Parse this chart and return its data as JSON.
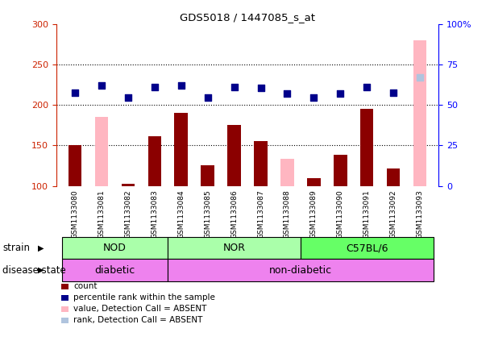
{
  "title": "GDS5018 / 1447085_s_at",
  "samples": [
    "GSM1133080",
    "GSM1133081",
    "GSM1133082",
    "GSM1133083",
    "GSM1133084",
    "GSM1133085",
    "GSM1133086",
    "GSM1133087",
    "GSM1133088",
    "GSM1133089",
    "GSM1133090",
    "GSM1133091",
    "GSM1133092",
    "GSM1133093"
  ],
  "count_values": [
    150,
    185,
    103,
    161,
    190,
    125,
    175,
    155,
    133,
    109,
    138,
    195,
    121,
    280
  ],
  "rank_values": [
    57.5,
    62.0,
    54.5,
    61.0,
    62.0,
    54.5,
    61.0,
    60.5,
    57.0,
    54.5,
    57.0,
    61.0,
    57.5,
    67.0
  ],
  "absent_mask_count": [
    false,
    true,
    false,
    false,
    false,
    false,
    false,
    false,
    true,
    false,
    false,
    false,
    false,
    true
  ],
  "absent_mask_rank": [
    false,
    false,
    false,
    false,
    false,
    false,
    false,
    false,
    false,
    false,
    false,
    false,
    false,
    true
  ],
  "ylim_left": [
    100,
    300
  ],
  "ylim_right": [
    0,
    100
  ],
  "yticks_left": [
    100,
    150,
    200,
    250,
    300
  ],
  "yticks_right": [
    0,
    25,
    50,
    75,
    100
  ],
  "ytick_labels_right": [
    "0",
    "25",
    "50",
    "75",
    "100%"
  ],
  "color_count_present": "#8B0000",
  "color_count_absent": "#FFB6C1",
  "color_rank_present": "#00008B",
  "color_rank_absent": "#B0C4DE",
  "strain_groups": [
    {
      "label": "NOD",
      "start": 0,
      "end": 3,
      "color": "#AAFFAA"
    },
    {
      "label": "NOR",
      "start": 4,
      "end": 8,
      "color": "#AAFFAA"
    },
    {
      "label": "C57BL/6",
      "start": 9,
      "end": 13,
      "color": "#66FF66"
    }
  ],
  "disease_groups": [
    {
      "label": "diabetic",
      "start": 0,
      "end": 3,
      "color": "#EE82EE"
    },
    {
      "label": "non-diabetic",
      "start": 4,
      "end": 13,
      "color": "#EE82EE"
    }
  ],
  "background_color": "#ffffff",
  "tick_area_color": "#cccccc",
  "bar_width": 0.5,
  "rank_marker_size": 36,
  "legend_items": [
    {
      "label": "count",
      "color": "#8B0000"
    },
    {
      "label": "percentile rank within the sample",
      "color": "#00008B"
    },
    {
      "label": "value, Detection Call = ABSENT",
      "color": "#FFB6C1"
    },
    {
      "label": "rank, Detection Call = ABSENT",
      "color": "#B0C4DE"
    }
  ]
}
